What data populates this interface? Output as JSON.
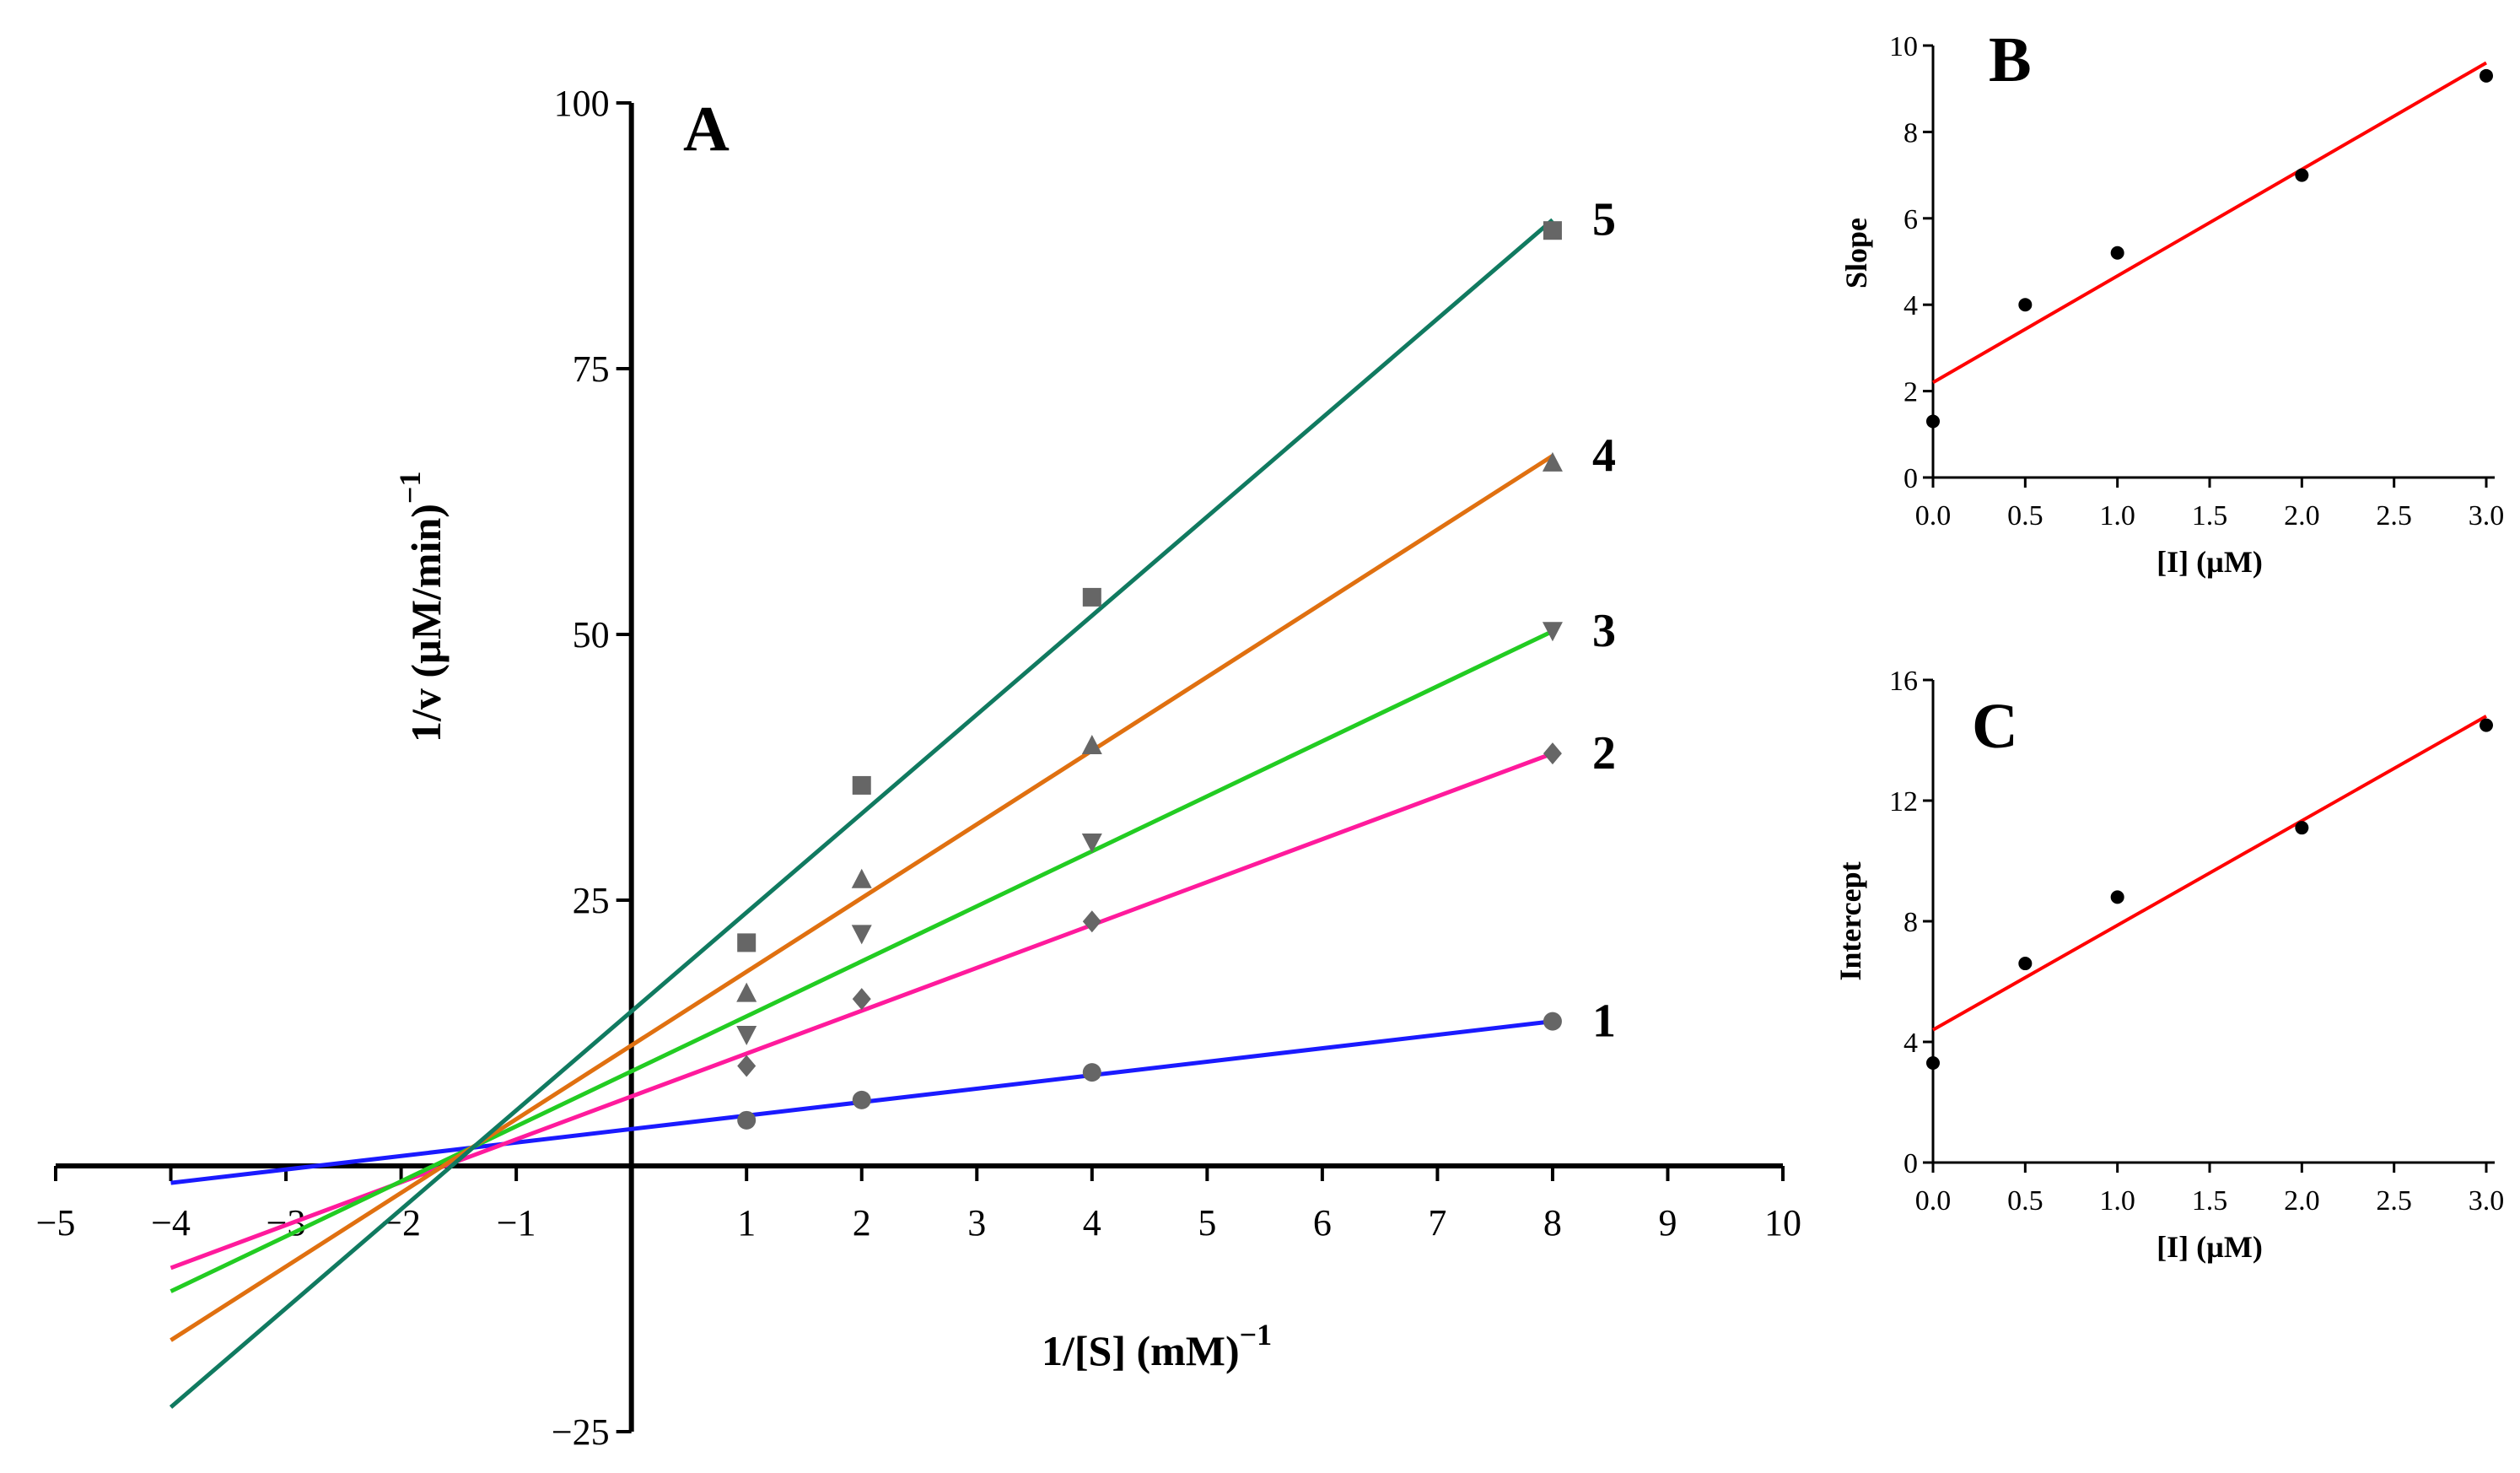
{
  "chart_data": [
    {
      "panel": "A",
      "type": "line",
      "title": "A",
      "xlabel": "1/[S] (mM)",
      "xlabel_sup": "−1",
      "ylabel": "1/v (µM/min)",
      "ylabel_sup": "−1",
      "xlim": [
        -5,
        10
      ],
      "ylim": [
        -25,
        100
      ],
      "x_ticks": [
        -5,
        -4,
        -3,
        -2,
        -1,
        1,
        2,
        3,
        4,
        5,
        6,
        7,
        8,
        9,
        10
      ],
      "x_tick_labels": [
        "−5",
        "−4",
        "−3",
        "−2",
        "−1",
        "1",
        "2",
        "3",
        "4",
        "5",
        "6",
        "7",
        "8",
        "9",
        "10"
      ],
      "y_ticks": [
        -25,
        25,
        50,
        75,
        100
      ],
      "y_tick_labels": [
        "−25",
        "25",
        "50",
        "75",
        "100"
      ],
      "series": [
        {
          "name": "1",
          "label": "1",
          "color": "#1a1aff",
          "marker": "circle",
          "x": [
            1,
            2,
            4,
            8
          ],
          "y": [
            4.3,
            6.2,
            8.8,
            13.6
          ],
          "fit": {
            "x": [
              -4,
              8
            ],
            "y": [
              -1.6,
              13.6
            ]
          }
        },
        {
          "name": "2",
          "label": "2",
          "color": "#ff1a9c",
          "marker": "diamond",
          "x": [
            1,
            2,
            4,
            8
          ],
          "y": [
            9.4,
            15.7,
            23.0,
            38.8
          ],
          "fit": {
            "x": [
              -4,
              8
            ],
            "y": [
              -9.6,
              38.8
            ]
          }
        },
        {
          "name": "3",
          "label": "3",
          "color": "#22cc22",
          "marker": "triangle-down",
          "x": [
            1,
            2,
            4,
            8
          ],
          "y": [
            12.3,
            21.8,
            30.4,
            50.3
          ],
          "fit": {
            "x": [
              -4,
              8
            ],
            "y": [
              -11.8,
              50.3
            ]
          }
        },
        {
          "name": "4",
          "label": "4",
          "color": "#e07010",
          "marker": "triangle-up",
          "x": [
            1,
            2,
            4,
            8
          ],
          "y": [
            16.3,
            27.0,
            39.6,
            66.2
          ],
          "fit": {
            "x": [
              -4,
              8
            ],
            "y": [
              -16.4,
              66.8
            ]
          }
        },
        {
          "name": "5",
          "label": "5",
          "color": "#107a60",
          "marker": "square",
          "x": [
            1,
            2,
            4,
            8
          ],
          "y": [
            21.0,
            35.8,
            53.5,
            88.0
          ],
          "fit": {
            "x": [
              -4,
              8
            ],
            "y": [
              -22.7,
              89.0
            ]
          }
        }
      ]
    },
    {
      "panel": "B",
      "type": "scatter",
      "title": "B",
      "xlabel": "[I] (µM)",
      "ylabel": "Slope",
      "xlim": [
        0,
        3
      ],
      "ylim": [
        0,
        10
      ],
      "x_ticks": [
        0,
        0.5,
        1,
        1.5,
        2,
        2.5,
        3
      ],
      "x_tick_labels": [
        "0.0",
        "0.5",
        "1.0",
        "1.5",
        "2.0",
        "2.5",
        "3.0"
      ],
      "y_ticks": [
        0,
        2,
        4,
        6,
        8,
        10
      ],
      "y_tick_labels": [
        "0",
        "2",
        "4",
        "6",
        "8",
        "10"
      ],
      "points": {
        "x": [
          0,
          0.5,
          1,
          2,
          3
        ],
        "y": [
          1.3,
          4.0,
          5.2,
          7.0,
          9.3
        ]
      },
      "fit": {
        "color": "#ff0000",
        "x": [
          0,
          3
        ],
        "y": [
          2.2,
          9.6
        ]
      }
    },
    {
      "panel": "C",
      "type": "scatter",
      "title": "C",
      "xlabel": "[I] (µM)",
      "ylabel": "Intercept",
      "xlim": [
        0,
        3
      ],
      "ylim": [
        0,
        16
      ],
      "x_ticks": [
        0,
        0.5,
        1,
        1.5,
        2,
        2.5,
        3
      ],
      "x_tick_labels": [
        "0.0",
        "0.5",
        "1.0",
        "1.5",
        "2.0",
        "2.5",
        "3.0"
      ],
      "y_ticks": [
        0,
        4,
        8,
        12,
        16
      ],
      "y_tick_labels": [
        "0",
        "4",
        "8",
        "12",
        "16"
      ],
      "points": {
        "x": [
          0,
          0.5,
          1,
          2,
          3
        ],
        "y": [
          3.3,
          6.6,
          8.8,
          11.1,
          14.5
        ]
      },
      "fit": {
        "color": "#ff0000",
        "x": [
          0,
          3
        ],
        "y": [
          4.4,
          14.8
        ]
      }
    }
  ]
}
